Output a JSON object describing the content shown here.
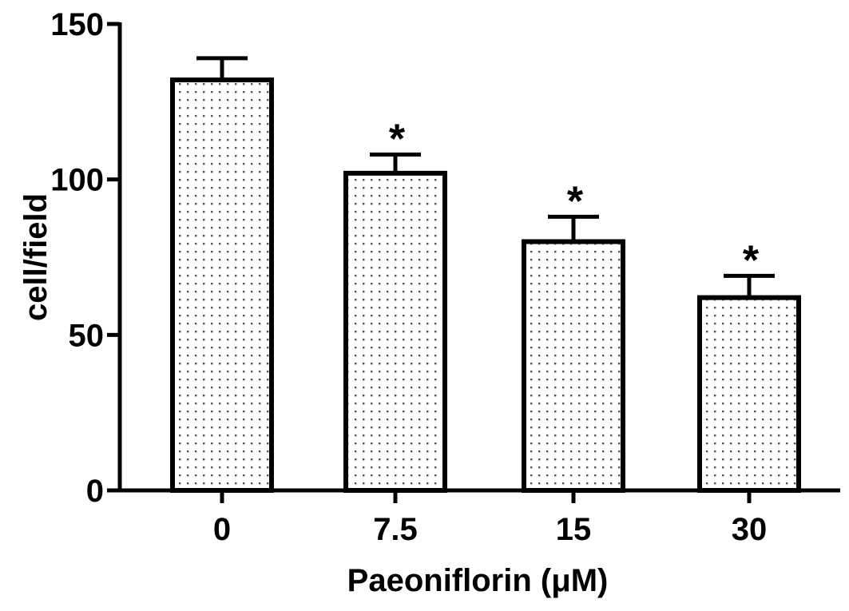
{
  "chart_data": {
    "type": "bar",
    "title": "",
    "xlabel": "Paeoniflorin (μM)",
    "ylabel": "cell/field",
    "categories": [
      "0",
      "7.5",
      "15",
      "30"
    ],
    "values": [
      132,
      102,
      80,
      62
    ],
    "error_upper": [
      7,
      6,
      8,
      7
    ],
    "significance": [
      "",
      "*",
      "*",
      "*"
    ],
    "ylim": [
      0,
      150
    ],
    "yticks": [
      0,
      50,
      100,
      150
    ],
    "ytick_labels": [
      "0",
      "50",
      "100",
      "150"
    ],
    "grid": false,
    "legend": "none",
    "bar_fill": "dotted",
    "bar_color": "#000000"
  }
}
